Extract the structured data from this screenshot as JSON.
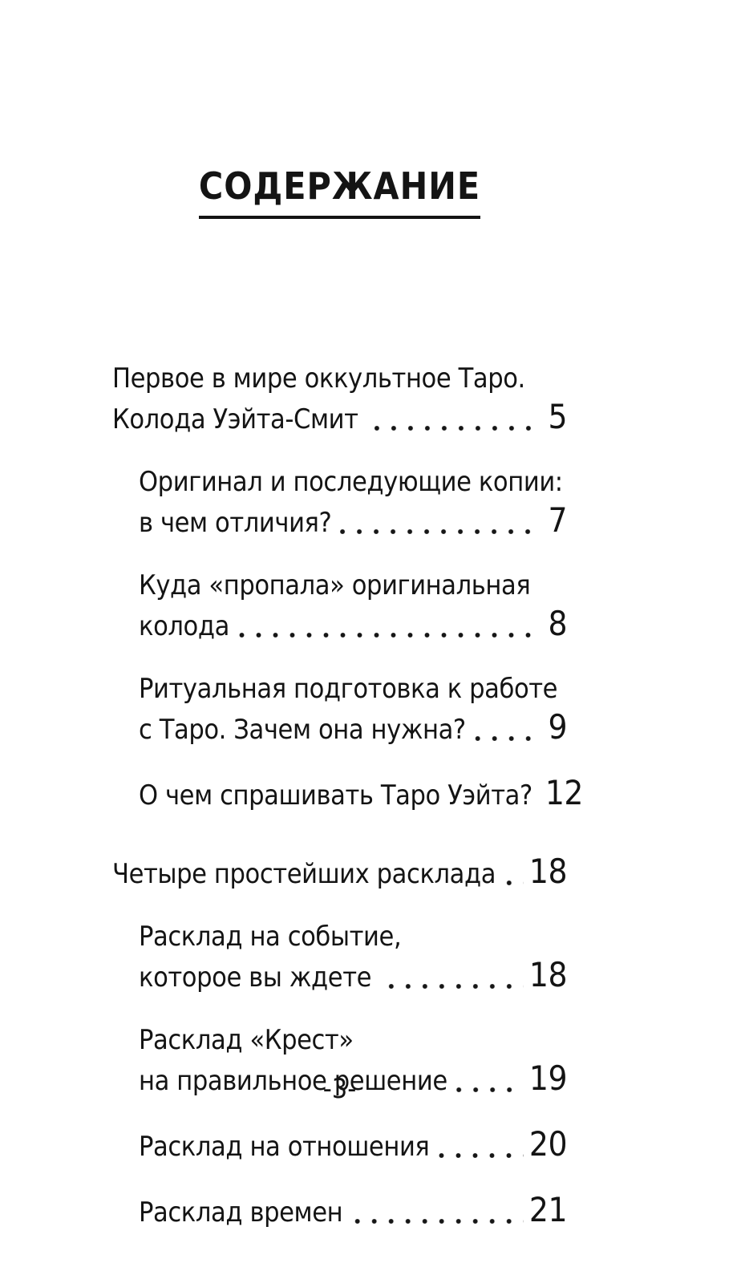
{
  "page": {
    "title": "СОДЕРЖАНИЕ",
    "footer_page_number": "-3-",
    "text_color": "#141414",
    "background_color": "#ffffff"
  },
  "toc": {
    "entries": [
      {
        "level": 1,
        "lines": [
          "Первое в мире оккультное Таро.",
          "Колода Уэйта-Смит"
        ],
        "page": "5"
      },
      {
        "level": 2,
        "lines": [
          "Оригинал и последующие копии:",
          "в чем отличия?"
        ],
        "page": "7"
      },
      {
        "level": 2,
        "lines": [
          "Куда «пропала» оригинальная",
          "колода"
        ],
        "page": "8"
      },
      {
        "level": 2,
        "lines": [
          "Ритуальная подготовка к работе",
          "с Таро. Зачем она нужна?"
        ],
        "page": "9"
      },
      {
        "level": 2,
        "lines": [
          "О чем спрашивать Таро Уэйта?"
        ],
        "page": "12"
      },
      {
        "level": 1,
        "lines": [
          "Четыре простейших расклада"
        ],
        "page": "18"
      },
      {
        "level": 2,
        "lines": [
          "Расклад на событие,",
          "которое вы ждете"
        ],
        "page": "18"
      },
      {
        "level": 2,
        "lines": [
          "Расклад «Крест»",
          "на правильное решение"
        ],
        "page": "19"
      },
      {
        "level": 2,
        "lines": [
          "Расклад на отношения"
        ],
        "page": "20"
      },
      {
        "level": 2,
        "lines": [
          "Расклад времен"
        ],
        "page": "21"
      }
    ]
  }
}
